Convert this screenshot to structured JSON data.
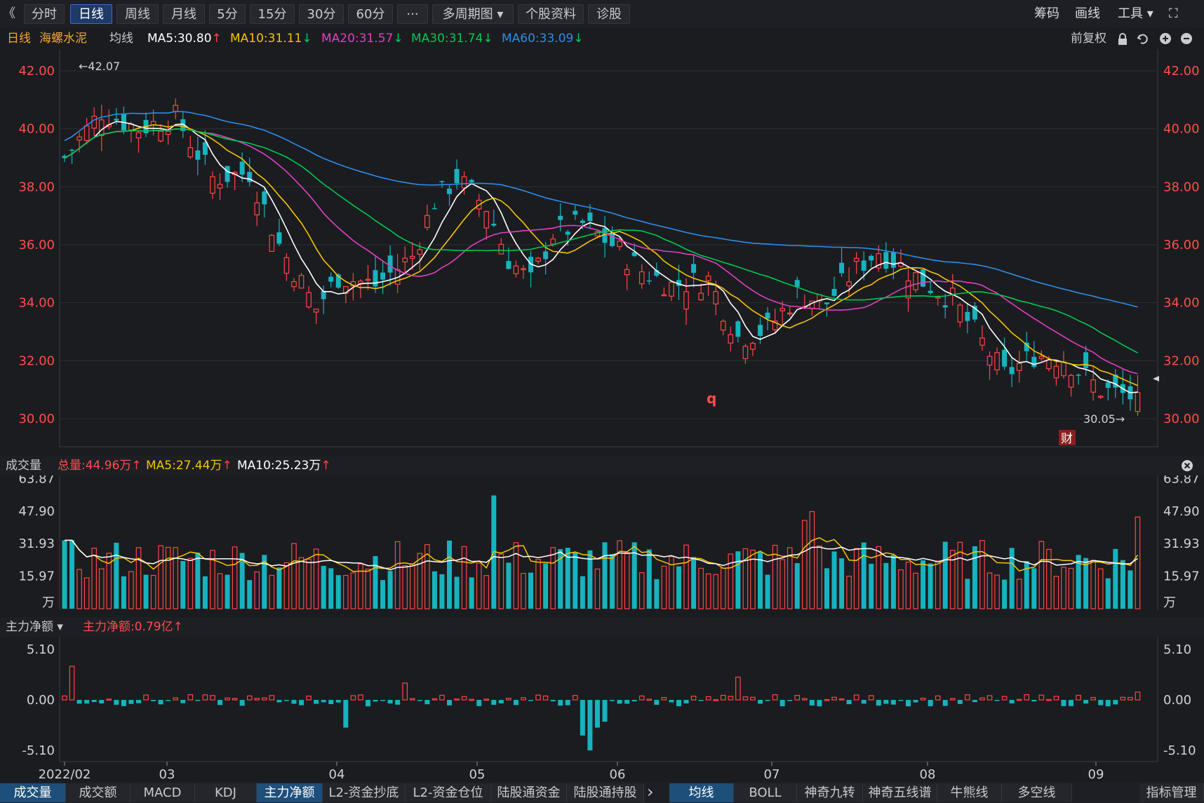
{
  "toolbar": {
    "back_glyph": "《",
    "tabs": [
      {
        "label": "分时"
      },
      {
        "label": "日线",
        "active": true
      },
      {
        "label": "周线"
      },
      {
        "label": "月线"
      },
      {
        "label": "5分"
      },
      {
        "label": "15分"
      },
      {
        "label": "30分"
      },
      {
        "label": "60分"
      },
      {
        "label": "···"
      },
      {
        "label": "多周期图 ▾"
      },
      {
        "label": "个股资料"
      },
      {
        "label": "诊股"
      }
    ],
    "right": {
      "chip": "筹码",
      "draw": "画线",
      "tools": "工具 ▾",
      "expand_glyph": "⛶"
    }
  },
  "indicator_line": {
    "period": "日线",
    "stock_name": "海螺水泥",
    "ma_label": "均线",
    "ma": [
      {
        "text": "MA5:30.80",
        "arrow": "↑",
        "color": "#ffffff",
        "arrow_color": "#ff4040"
      },
      {
        "text": "MA10:31.11",
        "arrow": "↓",
        "color": "#f5c400",
        "arrow_color": "#00d060"
      },
      {
        "text": "MA20:31.57",
        "arrow": "↓",
        "color": "#e040c0",
        "arrow_color": "#00d060"
      },
      {
        "text": "MA30:31.74",
        "arrow": "↓",
        "color": "#00c850",
        "arrow_color": "#00d060"
      },
      {
        "text": "MA60:33.09",
        "arrow": "↓",
        "color": "#2c8ce8",
        "arrow_color": "#00d060"
      }
    ],
    "adjust": "前复权"
  },
  "colors": {
    "up": "#ff4545",
    "down": "#17b3be",
    "ma5": "#ffffff",
    "ma10": "#f5c400",
    "ma20": "#e040c0",
    "ma30": "#00c850",
    "ma60": "#2c8ce8",
    "grid": "#2c2e33",
    "axis_red": "#ff4d4d"
  },
  "chart_data": [
    {
      "type": "candlestick",
      "title": "",
      "y_ticks": [
        "42.00",
        "40.00",
        "38.00",
        "36.00",
        "34.00",
        "32.00",
        "30.00"
      ],
      "ylim": [
        29,
        43
      ],
      "high_label": "←42.07",
      "low_label": "30.05→",
      "marker_q": "q",
      "marker_cai": "财",
      "x_ticks": [
        "2022/02",
        "03",
        "04",
        "05",
        "06",
        "07",
        "08",
        "09"
      ]
    },
    {
      "type": "bar",
      "title": "成交量",
      "legend": [
        {
          "text": "总量:44.96万",
          "arrow": "↑",
          "color": "#ff4d4d"
        },
        {
          "text": "MA5:27.44万",
          "arrow": "↑",
          "color": "#f5c400"
        },
        {
          "text": "MA10:25.23万",
          "arrow": "↑",
          "color": "#ffffff"
        }
      ],
      "y_ticks": [
        "63.87",
        "47.90",
        "31.93",
        "15.97"
      ],
      "unit": "万",
      "ylim": [
        0,
        64
      ]
    },
    {
      "type": "bar",
      "title": "主力净额 ▾",
      "legend": [
        {
          "text": "主力净额:0.79亿",
          "arrow": "↑",
          "color": "#ff4d4d"
        }
      ],
      "y_ticks": [
        "5.10",
        "0.00",
        "-5.10"
      ],
      "ylim": [
        -5.1,
        5.1
      ]
    }
  ],
  "bottom_tabs_left": [
    {
      "label": "成交量",
      "active": true
    },
    {
      "label": "成交额"
    },
    {
      "label": "MACD"
    },
    {
      "label": "KDJ"
    },
    {
      "label": "主力净额",
      "active": true
    },
    {
      "label": "L2-资金抄底"
    },
    {
      "label": "L2-资金仓位"
    },
    {
      "label": "陆股通资金"
    },
    {
      "label": "陆股通持股"
    }
  ],
  "bottom_tabs_right": [
    {
      "label": "均线",
      "active": true
    },
    {
      "label": "BOLL"
    },
    {
      "label": "神奇九转"
    },
    {
      "label": "神奇五线谱"
    },
    {
      "label": "牛熊线"
    },
    {
      "label": "多空线"
    },
    {
      "label": "指标管理"
    }
  ],
  "bottom_arrow": "›"
}
